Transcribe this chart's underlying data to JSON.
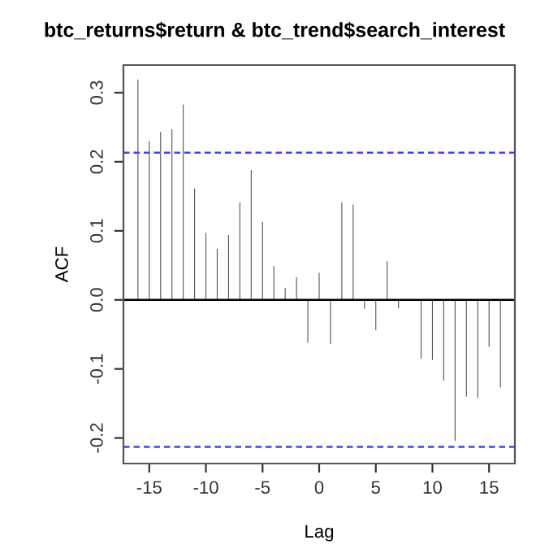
{
  "chart_data": {
    "type": "bar",
    "title": "btc_returns$return & btc_trend$search_interest",
    "xlabel": "Lag",
    "ylabel": "ACF",
    "x": [
      -16,
      -15,
      -14,
      -13,
      -12,
      -11,
      -10,
      -9,
      -8,
      -7,
      -6,
      -5,
      -4,
      -3,
      -2,
      -1,
      0,
      1,
      2,
      3,
      4,
      5,
      6,
      7,
      8,
      9,
      10,
      11,
      12,
      13,
      14,
      15,
      16
    ],
    "values": [
      0.319,
      0.23,
      0.243,
      0.247,
      0.283,
      0.161,
      0.097,
      0.074,
      0.094,
      0.141,
      0.188,
      0.113,
      0.049,
      0.017,
      0.033,
      -0.062,
      0.039,
      -0.064,
      0.141,
      0.138,
      -0.013,
      -0.044,
      0.056,
      -0.012,
      0.0,
      -0.085,
      -0.087,
      -0.117,
      -0.204,
      -0.14,
      -0.142,
      -0.068,
      -0.127
    ],
    "color": "#555555",
    "xlim": [
      -17.28,
      17.28
    ],
    "ylim": [
      -0.237,
      0.34
    ],
    "xticks": [
      -15,
      -10,
      -5,
      0,
      5,
      10,
      15
    ],
    "yticks": [
      -0.2,
      -0.1,
      {
        "value": 0,
        "label": "0.0"
      },
      0.1,
      0.2,
      0.3
    ],
    "ref_lines": [
      {
        "axis": "y",
        "value": 0.213,
        "color": "#4040ff",
        "line_style": "dashed"
      },
      {
        "axis": "y",
        "value": -0.213,
        "color": "#4040ff",
        "line_style": "dashed"
      },
      {
        "axis": "y",
        "value": 0,
        "color": "#000000",
        "line_style": "solid"
      }
    ],
    "grid": false,
    "legend": false
  }
}
